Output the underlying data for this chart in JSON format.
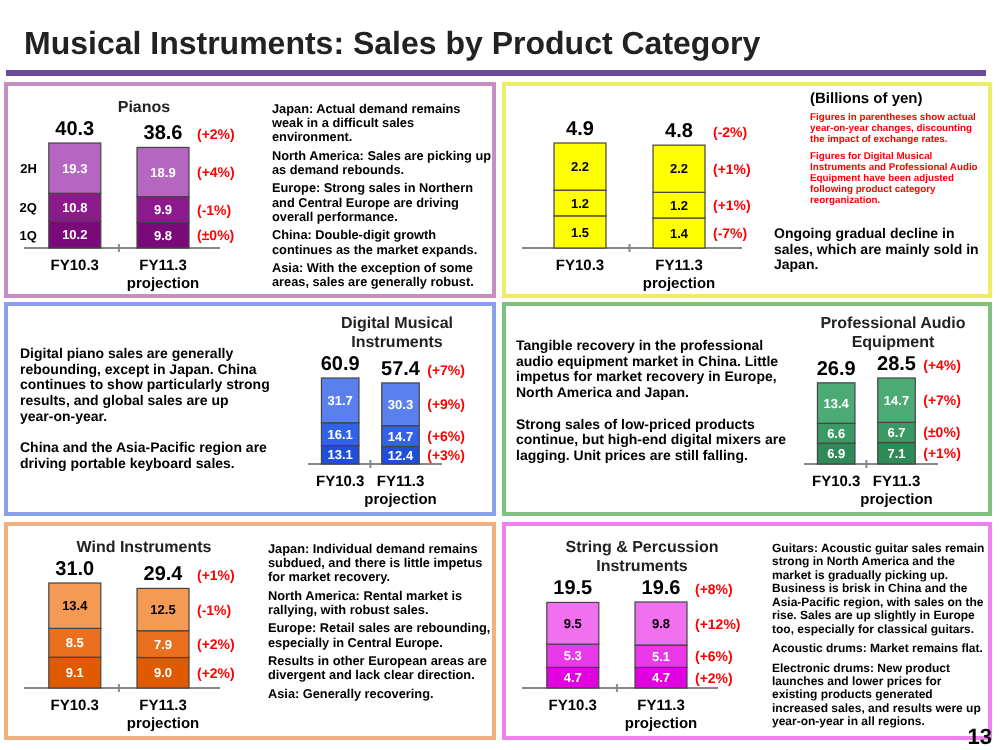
{
  "chart_data": [
    {
      "type": "other",
      "title": "Musical Instruments: Sales by Product Category",
      "annotations": [
        "(Billions of yen)",
        "Figures in parentheses show actual year-on-year changes, discounting the impact of exchange rates.",
        "Figures for Digital Musical Instruments and Professional Audio Equipment have been adjusted following product category reorganization.",
        "13"
      ]
    },
    {
      "type": "bar",
      "title": "Pianos",
      "categories": [
        "FY10.3",
        "FY11.3 projection"
      ],
      "stacked": true,
      "data_labels": true,
      "series": [
        {
          "name": "1Q",
          "color": "#7a0a7a",
          "values": [
            10.2,
            9.8
          ]
        },
        {
          "name": "2Q",
          "color": "#8c1a8c",
          "values": [
            10.8,
            9.9
          ]
        },
        {
          "name": "2H",
          "color": "#b466c0",
          "values": [
            19.3,
            18.9
          ]
        }
      ],
      "totals": [
        "40.3",
        "38.6"
      ],
      "annotations": [
        "(+2%)",
        "(+4%)",
        "(-1%)",
        "(±0%)"
      ]
    },
    {
      "type": "other",
      "annotations": [
        "Japan: Actual demand remains weak in a difficult sales environment.",
        "North America: Sales are picking up as demand rebounds.",
        "Europe: Strong sales in Northern and Central Europe are driving overall performance.",
        "China: Double-digit growth continues as the market expands.",
        "Asia: With the exception of some areas, sales are generally robust."
      ]
    },
    {
      "type": "bar",
      "title": null,
      "categories": [
        "FY10.3",
        "FY11.3 projection"
      ],
      "stacked": true,
      "data_labels": true,
      "series": [
        {
          "color": "#ffff00",
          "values": [
            1.5,
            1.4
          ]
        },
        {
          "color": "#ffff00",
          "values": [
            1.2,
            1.2
          ]
        },
        {
          "color": "#ffff00",
          "values": [
            2.2,
            2.2
          ]
        }
      ],
      "totals": [
        "4.9",
        "4.8"
      ],
      "annotations": [
        "(-2%)",
        "(+1%)",
        "(+1%)",
        "(-7%)"
      ]
    },
    {
      "type": "other",
      "annotations": [
        "Ongoing gradual decline in sales, which are mainly sold in Japan."
      ]
    },
    {
      "type": "other",
      "annotations": [
        "Digital piano sales are generally rebounding, except in Japan. China continues to show particularly strong results, and global sales are up year-on-year.",
        "China and the Asia-Pacific region are driving portable keyboard sales."
      ]
    },
    {
      "type": "bar",
      "title": "Digital Musical Instruments",
      "categories": [
        "FY10.3",
        "FY11.3 projection"
      ],
      "stacked": true,
      "data_labels": true,
      "series": [
        {
          "color": "#1f4fd8",
          "values": [
            13.1,
            12.4
          ]
        },
        {
          "color": "#3163e8",
          "values": [
            16.1,
            14.7
          ]
        },
        {
          "color": "#5a80ee",
          "values": [
            31.7,
            30.3
          ]
        }
      ],
      "totals": [
        "60.9",
        "57.4"
      ],
      "annotations": [
        "(+7%)",
        "(+9%)",
        "(+6%)",
        "(+3%)"
      ]
    },
    {
      "type": "other",
      "annotations": [
        "Tangible recovery in the professional audio equipment market in China. Little impetus for market recovery in Europe, North America and Japan.",
        "Strong sales of low-priced products continue, but high-end digital mixers are lagging. Unit prices are still falling."
      ]
    },
    {
      "type": "bar",
      "title": "Professional Audio Equipment",
      "categories": [
        "FY10.3",
        "FY11.3 projection"
      ],
      "stacked": true,
      "data_labels": true,
      "series": [
        {
          "color": "#2e8b57",
          "values": [
            6.9,
            7.1
          ]
        },
        {
          "color": "#3a9a63",
          "values": [
            6.6,
            6.7
          ]
        },
        {
          "color": "#4caa74",
          "values": [
            13.4,
            14.7
          ]
        }
      ],
      "totals": [
        "26.9",
        "28.5"
      ],
      "annotations": [
        "(+4%)",
        "(+7%)",
        "(±0%)",
        "(+1%)"
      ]
    },
    {
      "type": "bar",
      "title": "Wind Instruments",
      "categories": [
        "FY10.3",
        "FY11.3 projection"
      ],
      "stacked": true,
      "data_labels": true,
      "series": [
        {
          "color": "#e05a00",
          "values": [
            9.1,
            9.0
          ],
          "value_labels": [
            "9.1",
            "9.0"
          ]
        },
        {
          "color": "#ea7020",
          "values": [
            8.5,
            7.9
          ]
        },
        {
          "color": "#f59a55",
          "values": [
            13.4,
            12.5
          ]
        }
      ],
      "totals": [
        "31.0",
        "29.4"
      ],
      "annotations": [
        "(+1%)",
        "(-1%)",
        "(+2%)",
        "(+2%)"
      ]
    },
    {
      "type": "other",
      "annotations": [
        "Japan: Individual demand remains subdued, and there is little impetus for market recovery.",
        "North America: Rental market is rallying, with robust sales.",
        "Europe: Retail sales are rebounding, especially in Central Europe.",
        "Results in other European areas are divergent and lack clear direction.",
        "Asia: Generally recovering."
      ]
    },
    {
      "type": "bar",
      "title": "String & Percussion Instruments",
      "categories": [
        "FY10.3",
        "FY11.3 projection"
      ],
      "stacked": true,
      "data_labels": true,
      "series": [
        {
          "color": "#e000e0",
          "values": [
            4.7,
            4.7
          ]
        },
        {
          "color": "#e838e8",
          "values": [
            5.3,
            5.1
          ]
        },
        {
          "color": "#f070f0",
          "values": [
            9.5,
            9.8
          ]
        }
      ],
      "totals": [
        "19.5",
        "19.6"
      ],
      "annotations": [
        "(+8%)",
        "(+12%)",
        "(+6%)",
        "(+2%)"
      ]
    },
    {
      "type": "other",
      "annotations": [
        "Guitars: Acoustic guitar sales remain strong in North America and the market is gradually picking up. Business is brisk in China and the Asia-Pacific region, with sales on the rise. Sales are up slightly in Europe too, especially for classical guitars.",
        "Acoustic drums: Market remains flat.",
        "Electronic drums: New product launches and lower prices for existing products generated increased sales, and results were up year-on-year in all regions."
      ]
    }
  ]
}
